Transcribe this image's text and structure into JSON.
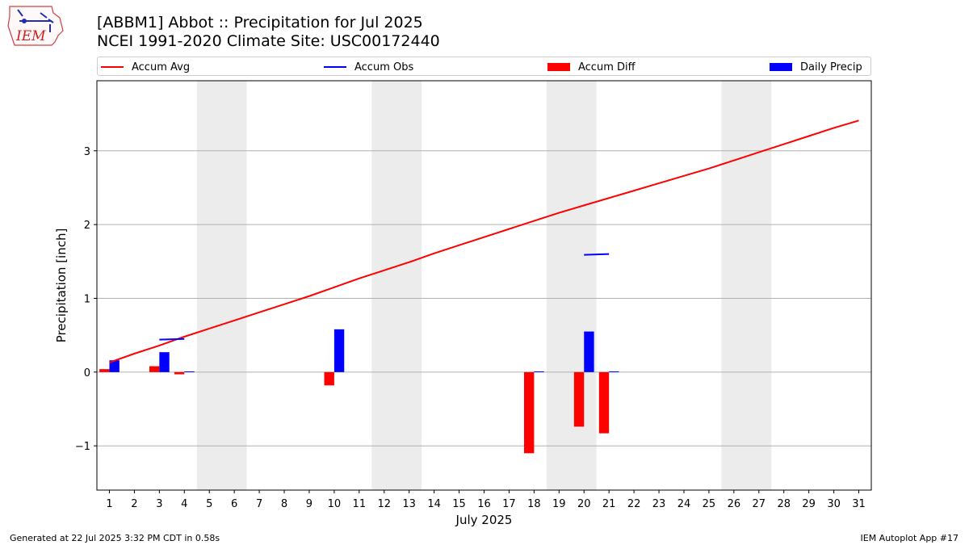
{
  "title_line1": "[ABBM1] Abbot :: Precipitation for Jul 2025",
  "title_line2": "NCEI 1991-2020 Climate Site: USC00172440",
  "logo_text": "IEM",
  "footer_left": "Generated at 22 Jul 2025 3:32 PM CDT in 0.58s",
  "footer_right": "IEM Autoplot App #17",
  "colors": {
    "avg": "#ff0000",
    "obs": "#0000ff",
    "diff": "#ff0000",
    "daily": "#0000ff",
    "weekend": "#ececec",
    "grid": "#b0b0b0"
  },
  "chart_data": {
    "type": "bar",
    "xlabel": "July 2025",
    "ylabel": "Precipitation [inch]",
    "xlim": [
      0.5,
      31.5
    ],
    "ylim": [
      -1.6,
      3.95
    ],
    "yticks": [
      -1,
      0,
      1,
      2,
      3
    ],
    "ytick_labels": [
      "−1",
      "0",
      "1",
      "2",
      "3"
    ],
    "grid": true,
    "legend_position": "top",
    "legend": [
      "Accum Avg",
      "Accum Obs",
      "Accum Diff",
      "Daily Precip"
    ],
    "categories": [
      "1",
      "2",
      "3",
      "4",
      "5",
      "6",
      "7",
      "8",
      "9",
      "10",
      "11",
      "12",
      "13",
      "14",
      "15",
      "16",
      "17",
      "18",
      "19",
      "20",
      "21",
      "22",
      "23",
      "24",
      "25",
      "26",
      "27",
      "28",
      "29",
      "30",
      "31"
    ],
    "weekend_spans": [
      [
        4.5,
        6.5
      ],
      [
        11.5,
        13.5
      ],
      [
        18.5,
        20.5
      ],
      [
        25.5,
        27.5
      ]
    ],
    "series": [
      {
        "name": "Accum Avg",
        "kind": "line",
        "x": [
          1,
          2,
          3,
          4,
          5,
          6,
          7,
          8,
          9,
          10,
          11,
          12,
          13,
          14,
          15,
          16,
          17,
          18,
          19,
          20,
          21,
          22,
          23,
          24,
          25,
          26,
          27,
          28,
          29,
          30,
          31
        ],
        "values": [
          0.13,
          0.25,
          0.36,
          0.48,
          0.59,
          0.7,
          0.81,
          0.92,
          1.03,
          1.15,
          1.27,
          1.38,
          1.49,
          1.61,
          1.72,
          1.83,
          1.94,
          2.05,
          2.16,
          2.26,
          2.36,
          2.46,
          2.56,
          2.66,
          2.76,
          2.87,
          2.98,
          3.09,
          3.2,
          3.31,
          3.41
        ]
      },
      {
        "name": "Accum Obs",
        "kind": "line",
        "segments": [
          {
            "x": [
              3,
              4
            ],
            "values": [
              0.44,
              0.45
            ]
          },
          {
            "x": [
              20,
              21
            ],
            "values": [
              1.59,
              1.6
            ]
          }
        ]
      },
      {
        "name": "Accum Diff",
        "kind": "bar",
        "x": [
          1,
          3,
          4,
          10,
          18,
          20,
          21
        ],
        "values": [
          0.04,
          0.08,
          -0.03,
          -0.18,
          -1.1,
          -0.74,
          -0.83
        ]
      },
      {
        "name": "Daily Precip",
        "kind": "bar",
        "x": [
          1,
          3,
          4,
          10,
          18,
          20,
          21
        ],
        "values": [
          0.16,
          0.27,
          0.01,
          0.58,
          0.01,
          0.55,
          0.01
        ]
      }
    ]
  }
}
